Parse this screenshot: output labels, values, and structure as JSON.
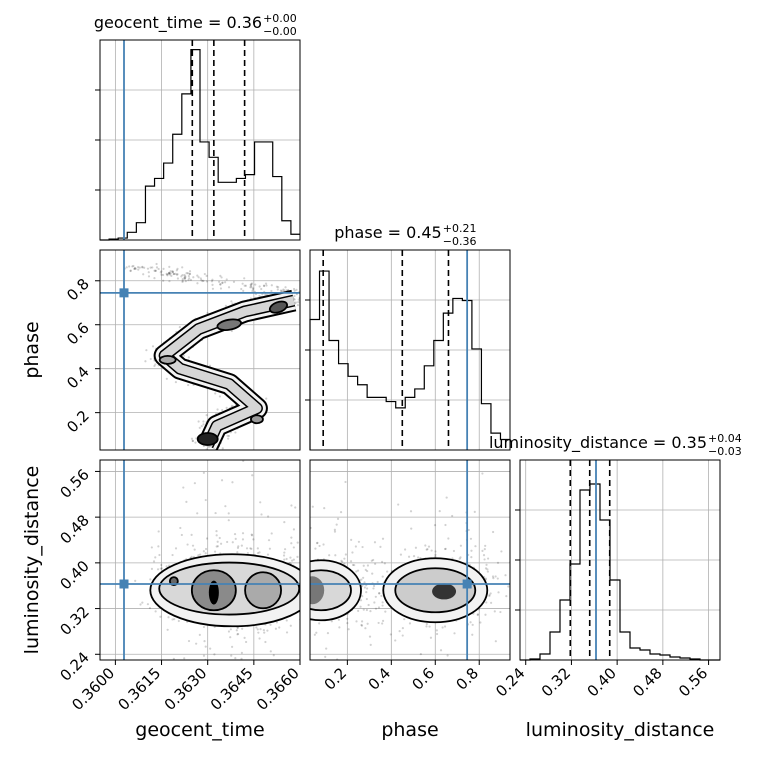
{
  "chart_data": {
    "type": "corner",
    "truth_color": "#4682b4",
    "parameters": [
      {
        "name": "geocent_time",
        "xlabel": "geocent_time",
        "title_label": "geocent_time = 0.36",
        "title_sup": "+0.00",
        "title_sub": "−0.00",
        "median": 0.3632,
        "q16": 0.3625,
        "q84": 0.3642,
        "truth": 0.36028,
        "range": [
          0.3595,
          0.366
        ],
        "ticks": [
          {
            "v": 0.36,
            "label": "0.3600"
          },
          {
            "v": 0.3615,
            "label": "0.3615"
          },
          {
            "v": 0.363,
            "label": "0.3630"
          },
          {
            "v": 0.3645,
            "label": "0.3645"
          },
          {
            "v": 0.366,
            "label": "0.3660"
          }
        ],
        "hist": [
          0,
          0.5,
          1,
          4,
          9,
          28,
          32,
          40,
          55,
          76,
          99,
          51,
          43,
          30,
          30,
          32,
          34,
          51,
          51,
          33,
          10,
          3
        ],
        "hist_max": 104
      },
      {
        "name": "phase",
        "xlabel": "phase",
        "ylabel": "phase",
        "title_label": "phase = 0.45",
        "title_sup": "+0.21",
        "title_sub": "−0.36",
        "median": 0.45,
        "q16": 0.09,
        "q84": 0.66,
        "truth": 0.745,
        "range": [
          0.03,
          0.94
        ],
        "ticks": [
          {
            "v": 0.2,
            "label": "0.2"
          },
          {
            "v": 0.4,
            "label": "0.4"
          },
          {
            "v": 0.6,
            "label": "0.6"
          },
          {
            "v": 0.8,
            "label": "0.8"
          }
        ],
        "hist": [
          62,
          85,
          52,
          41,
          35,
          31,
          25,
          25,
          23,
          20,
          25,
          29,
          40,
          52,
          65,
          72,
          71,
          48,
          22,
          8,
          5
        ],
        "hist_max": 95
      },
      {
        "name": "luminosity_distance",
        "xlabel": "luminosity_distance",
        "ylabel": "luminosity_distance",
        "title_label": "luminosity_distance = 0.35",
        "title_sup": "+0.04",
        "title_sub": "−0.03",
        "median": 0.352,
        "q16": 0.318,
        "q84": 0.387,
        "truth": 0.363,
        "range": [
          0.23,
          0.58
        ],
        "ticks": [
          {
            "v": 0.24,
            "label": "0.24"
          },
          {
            "v": 0.32,
            "label": "0.32"
          },
          {
            "v": 0.4,
            "label": "0.40"
          },
          {
            "v": 0.48,
            "label": "0.48"
          },
          {
            "v": 0.56,
            "label": "0.56"
          }
        ],
        "hist": [
          0,
          0.5,
          3,
          14,
          30,
          48,
          85,
          88,
          70,
          40,
          14,
          6,
          5,
          3,
          2.5,
          1.5,
          1,
          0.5,
          0,
          0
        ],
        "hist_max": 100
      }
    ],
    "contour_levels": 3,
    "grid": true
  }
}
